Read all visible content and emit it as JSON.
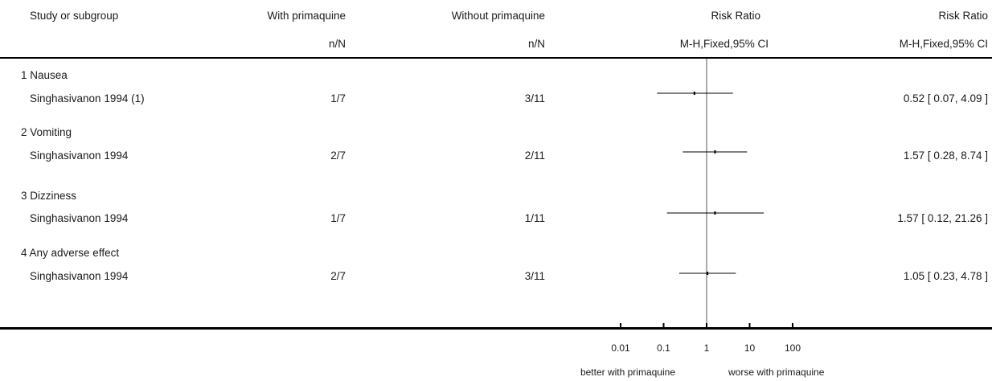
{
  "header": {
    "col_study": "Study or subgroup",
    "col_with": "With primaquine",
    "col_without": "Without primaquine",
    "col_rr_plot": "Risk Ratio",
    "col_rr_text": "Risk Ratio",
    "sub_with": "n/N",
    "sub_without": "n/N",
    "sub_rr_plot": "M-H,Fixed,95% CI",
    "sub_rr_text": "M-H,Fixed,95% CI"
  },
  "subgroups": [
    {
      "title": "1 Nausea",
      "study": "Singhasivanon 1994 (1)",
      "with": "1/7",
      "without": "3/11",
      "ci_text": "0.52 [ 0.07, 4.09 ]"
    },
    {
      "title": "2 Vomiting",
      "study": "Singhasivanon 1994",
      "with": "2/7",
      "without": "2/11",
      "ci_text": "1.57 [ 0.28, 8.74 ]"
    },
    {
      "title": "3 Dizziness",
      "study": "Singhasivanon 1994",
      "with": "1/7",
      "without": "1/11",
      "ci_text": "1.57 [ 0.12, 21.26 ]"
    },
    {
      "title": "4 Any adverse effect",
      "study": "Singhasivanon 1994",
      "with": "2/7",
      "without": "3/11",
      "ci_text": "1.05 [ 0.23, 4.78 ]"
    }
  ],
  "axis": {
    "ticks": [
      "0.01",
      "0.1",
      "1",
      "10",
      "100"
    ],
    "label_left": "better with primaquine",
    "label_right": "worse with primaquine"
  },
  "chart_data": {
    "type": "scatter",
    "scale": "log",
    "xlim": [
      0.01,
      100
    ],
    "reference_line": 1,
    "tick_values": [
      0.01,
      0.1,
      1,
      10,
      100
    ],
    "estimates": [
      {
        "label": "Nausea",
        "rr": 0.52,
        "lower": 0.07,
        "upper": 4.09
      },
      {
        "label": "Vomiting",
        "rr": 1.57,
        "lower": 0.28,
        "upper": 8.74
      },
      {
        "label": "Dizziness",
        "rr": 1.57,
        "lower": 0.12,
        "upper": 21.26
      },
      {
        "label": "Any adverse effect",
        "rr": 1.05,
        "lower": 0.23,
        "upper": 4.78
      }
    ]
  }
}
